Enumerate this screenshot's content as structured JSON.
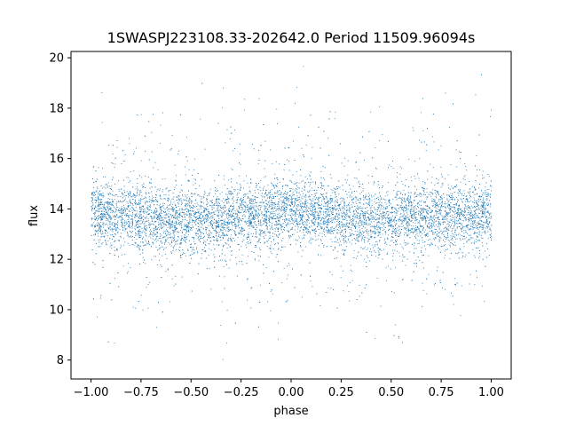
{
  "chart_data": {
    "type": "scatter",
    "title": "1SWASPJ223108.33-202642.0 Period 11509.96094s",
    "xlabel": "phase",
    "ylabel": "flux",
    "xlim": [
      -1.1,
      1.1
    ],
    "ylim": [
      7.25,
      20.25
    ],
    "xticks": [
      -1.0,
      -0.75,
      -0.5,
      -0.25,
      0.0,
      0.25,
      0.5,
      0.75,
      1.0
    ],
    "xtick_labels": [
      "−1.00",
      "−0.75",
      "−0.50",
      "−0.25",
      "0.00",
      "0.25",
      "0.50",
      "0.75",
      "1.00"
    ],
    "yticks": [
      8,
      10,
      12,
      14,
      16,
      18,
      20
    ],
    "ytick_labels": [
      "8",
      "10",
      "12",
      "14",
      "16",
      "18",
      "20"
    ],
    "grid": false,
    "marker_color": "#1f77b4",
    "series": [
      {
        "phase_range": [
          -1.0,
          1.0
        ],
        "flux_center": 13.8,
        "flux_core_range": [
          12.5,
          15.0
        ],
        "flux_full_range": [
          7.8,
          19.8
        ],
        "trend": [
          {
            "phase": -1.0,
            "flux": 13.9
          },
          {
            "phase": -0.75,
            "flux": 13.7
          },
          {
            "phase": -0.5,
            "flux": 13.5
          },
          {
            "phase": -0.25,
            "flux": 13.7
          },
          {
            "phase": 0.0,
            "flux": 13.9
          },
          {
            "phase": 0.25,
            "flux": 13.7
          },
          {
            "phase": 0.5,
            "flux": 13.5
          },
          {
            "phase": 0.75,
            "flux": 13.7
          },
          {
            "phase": 1.0,
            "flux": 13.9
          }
        ]
      }
    ]
  }
}
